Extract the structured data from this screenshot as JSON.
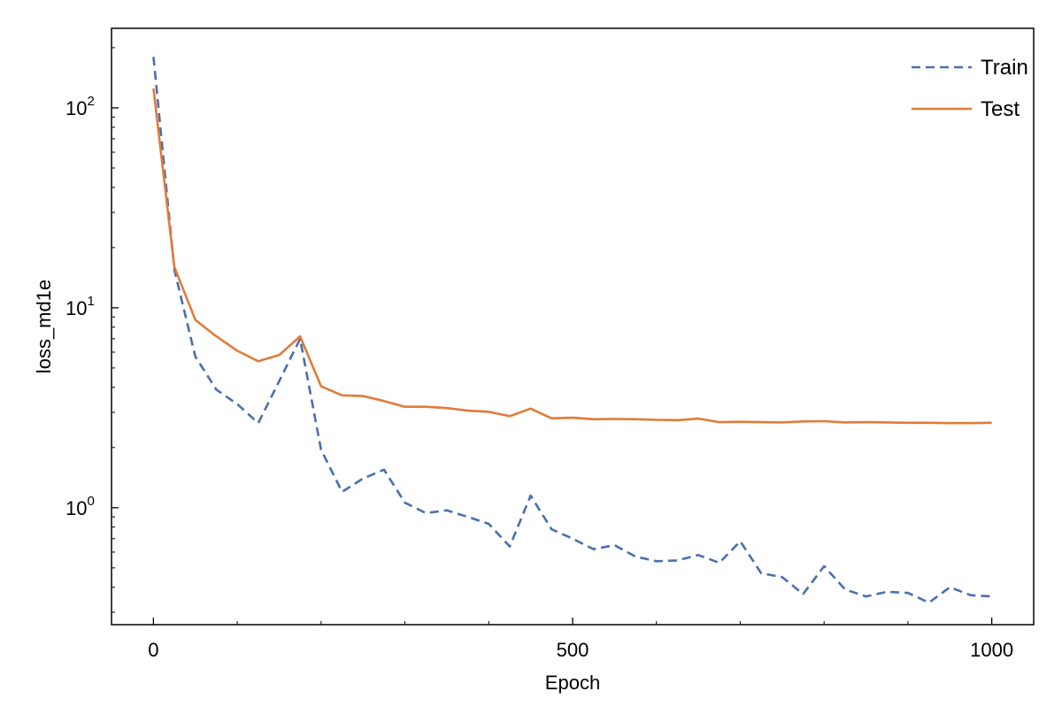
{
  "chart_data": {
    "type": "line",
    "xlabel": "Epoch",
    "ylabel": "loss_md1e",
    "xlim": [
      -50,
      1050
    ],
    "ylim": [
      0.26,
      250
    ],
    "yscale": "log",
    "grid": false,
    "legend_position": "top-right",
    "x_ticks": [
      0,
      500,
      1000
    ],
    "x_tick_labels": [
      "0",
      "500",
      "1000"
    ],
    "y_ticks": [
      {
        "value": 1,
        "base": "10",
        "exp": "0"
      },
      {
        "value": 10,
        "base": "10",
        "exp": "1"
      },
      {
        "value": 100,
        "base": "10",
        "exp": "2"
      }
    ],
    "series": [
      {
        "name": "Train",
        "color": "#4a6fae",
        "style": "dashed",
        "x": [
          0,
          25,
          50,
          75,
          100,
          125,
          150,
          175,
          200,
          225,
          250,
          275,
          300,
          325,
          350,
          375,
          400,
          425,
          450,
          475,
          500,
          525,
          550,
          575,
          600,
          625,
          650,
          675,
          700,
          725,
          750,
          775,
          800,
          825,
          850,
          875,
          900,
          925,
          950,
          975,
          1000
        ],
        "y": [
          180,
          15.5,
          5.7,
          3.9,
          3.3,
          2.65,
          4.3,
          7.0,
          1.95,
          1.2,
          1.4,
          1.55,
          1.06,
          0.94,
          0.97,
          0.9,
          0.83,
          0.64,
          1.15,
          0.78,
          0.7,
          0.62,
          0.65,
          0.57,
          0.54,
          0.545,
          0.58,
          0.53,
          0.68,
          0.47,
          0.45,
          0.37,
          0.51,
          0.39,
          0.36,
          0.38,
          0.375,
          0.335,
          0.4,
          0.365,
          0.36
        ]
      },
      {
        "name": "Test",
        "color": "#e07b39",
        "style": "solid",
        "x": [
          0,
          25,
          50,
          75,
          100,
          125,
          150,
          175,
          200,
          225,
          250,
          275,
          300,
          325,
          350,
          375,
          400,
          425,
          450,
          475,
          500,
          525,
          550,
          575,
          600,
          625,
          650,
          675,
          700,
          725,
          750,
          775,
          800,
          825,
          850,
          875,
          900,
          925,
          950,
          975,
          1000
        ],
        "y": [
          125,
          16.0,
          8.7,
          7.2,
          6.1,
          5.4,
          5.8,
          7.2,
          4.05,
          3.65,
          3.62,
          3.42,
          3.2,
          3.2,
          3.15,
          3.06,
          3.02,
          2.87,
          3.13,
          2.8,
          2.82,
          2.77,
          2.78,
          2.77,
          2.75,
          2.74,
          2.79,
          2.68,
          2.69,
          2.68,
          2.67,
          2.7,
          2.71,
          2.67,
          2.68,
          2.67,
          2.66,
          2.66,
          2.65,
          2.65,
          2.66
        ]
      }
    ]
  }
}
